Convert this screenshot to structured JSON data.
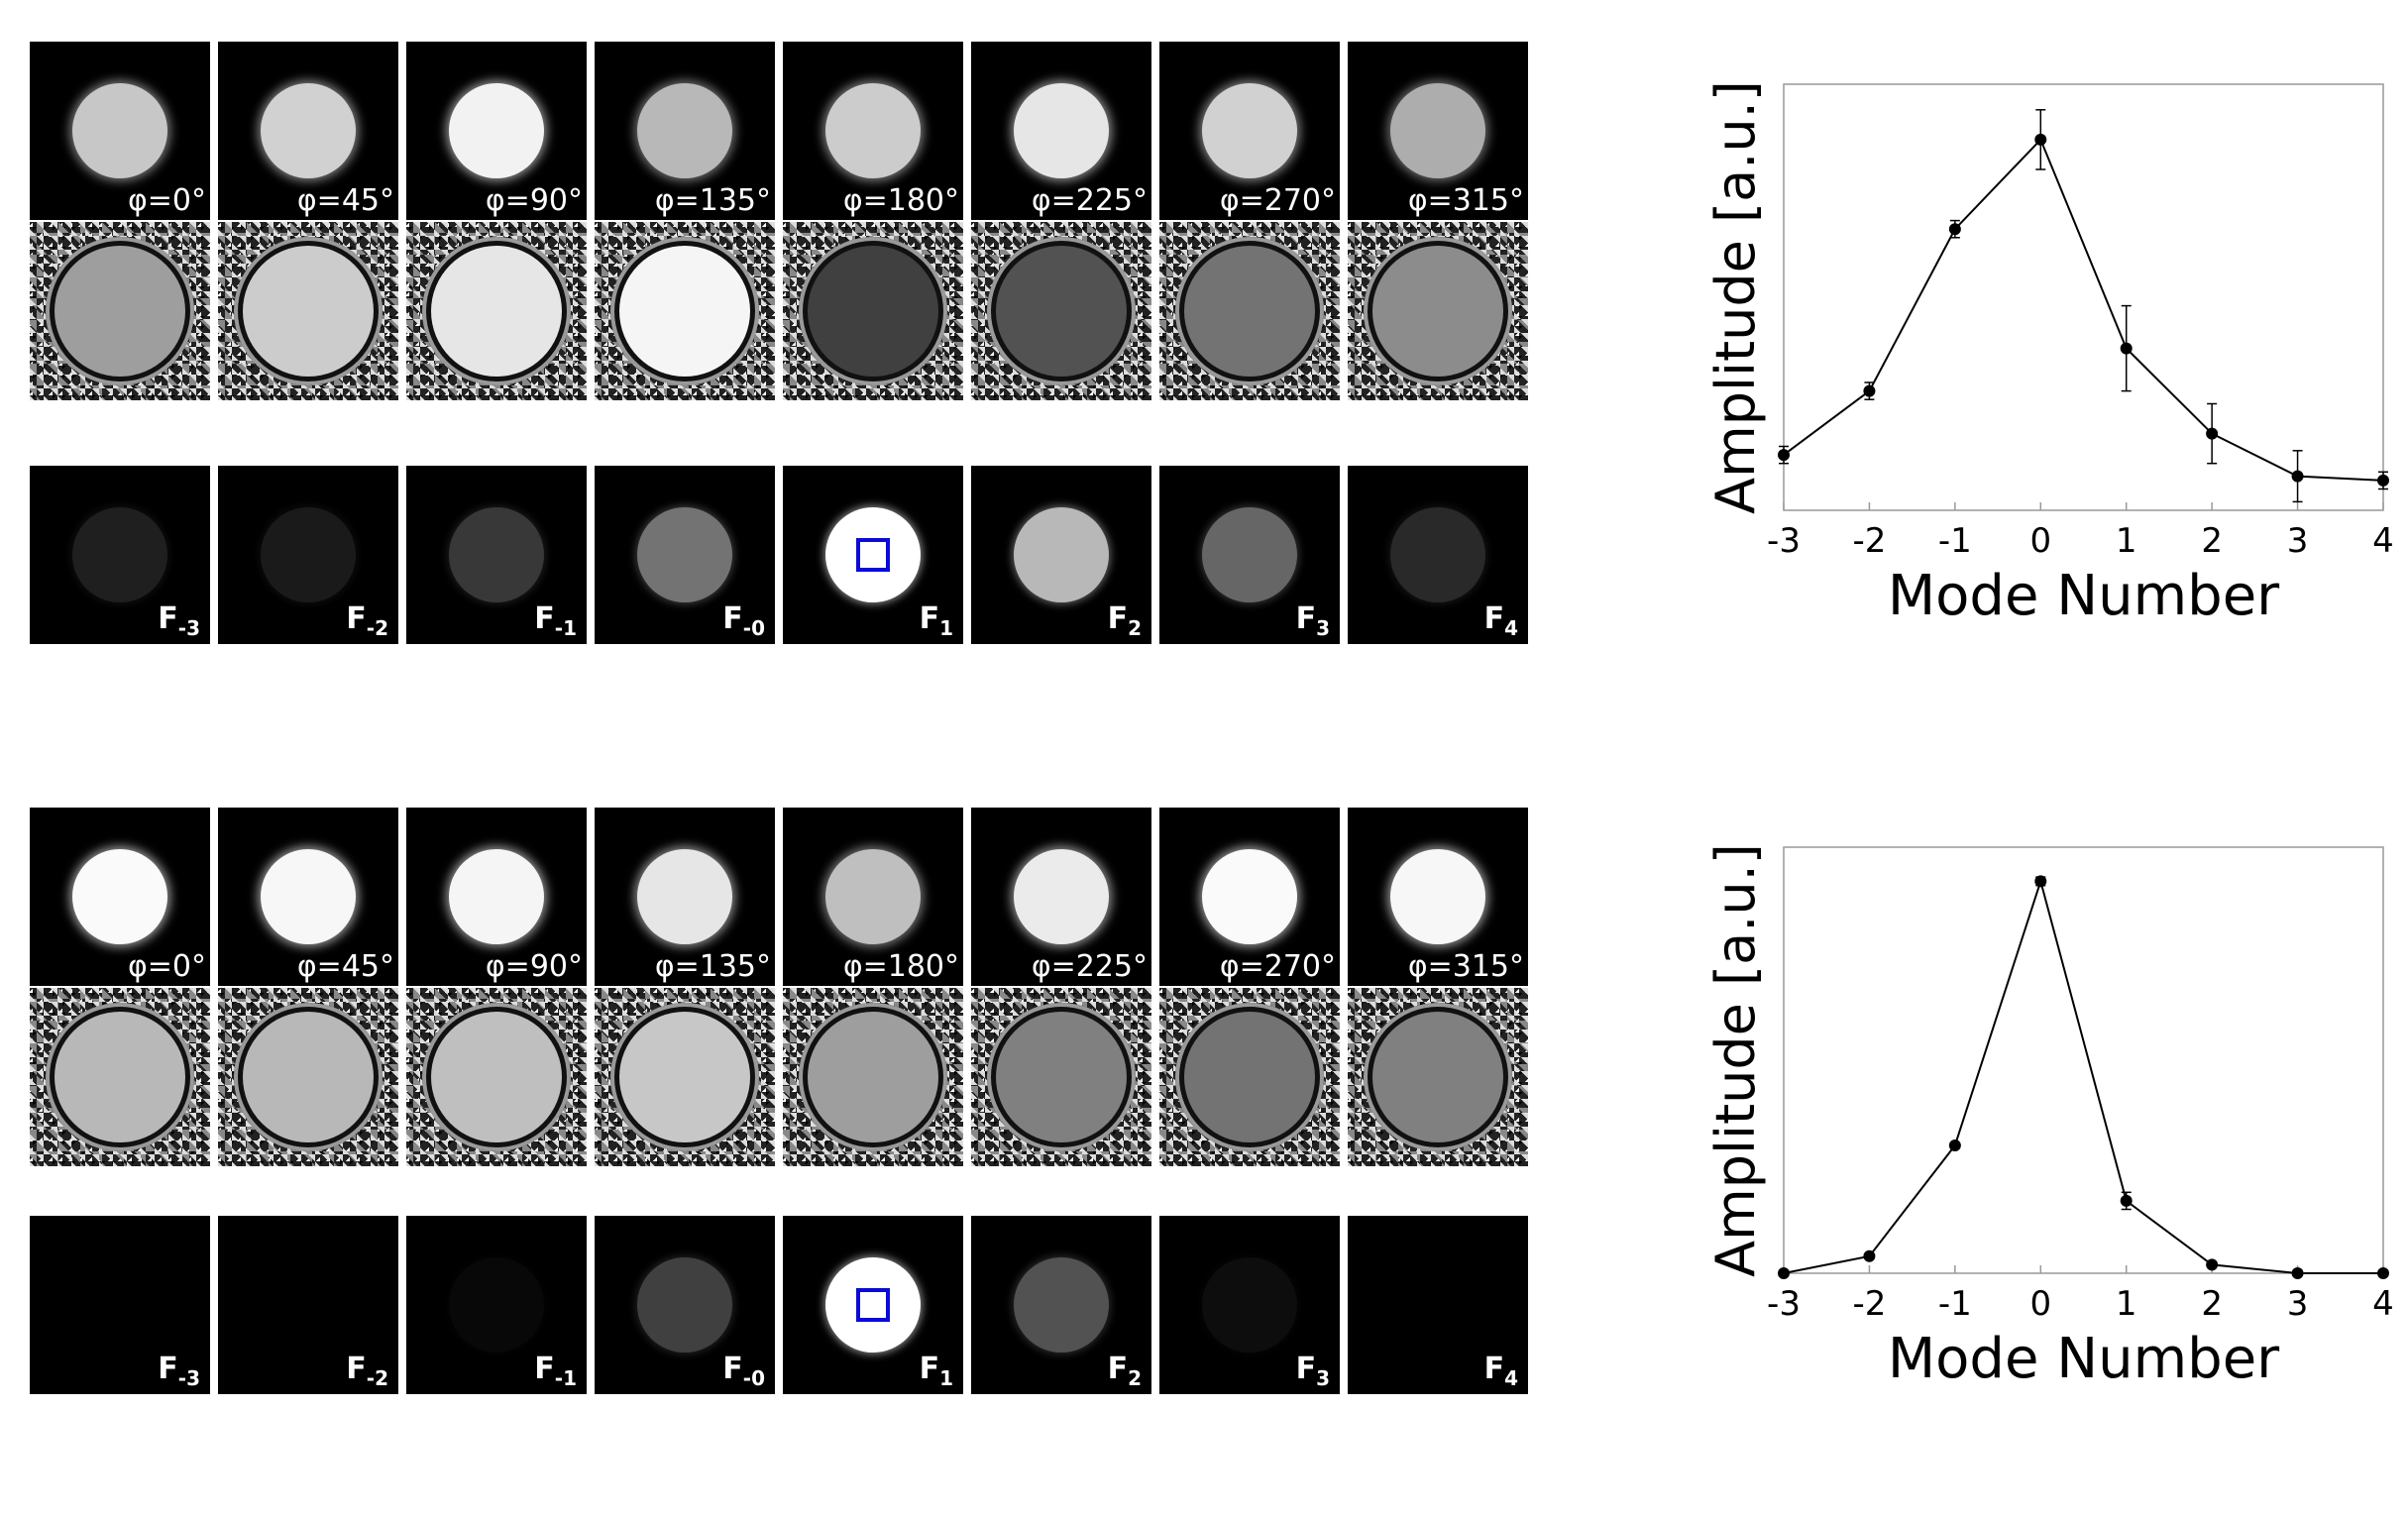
{
  "figure": {
    "panels": [
      {
        "phase_labels": [
          "φ=0°",
          "φ=45°",
          "φ=90°",
          "φ=135°",
          "φ=180°",
          "φ=225°",
          "φ=270°",
          "φ=315°"
        ],
        "mode_labels": [
          {
            "base": "F",
            "sub": "-3"
          },
          {
            "base": "F",
            "sub": "-2"
          },
          {
            "base": "F",
            "sub": "-1"
          },
          {
            "base": "F",
            "sub": "-0"
          },
          {
            "base": "F",
            "sub": "1"
          },
          {
            "base": "F",
            "sub": "2"
          },
          {
            "base": "F",
            "sub": "3"
          },
          {
            "base": "F",
            "sub": "4"
          }
        ],
        "magnitude_levels": [
          0.78,
          0.82,
          0.95,
          0.72,
          0.8,
          0.9,
          0.82,
          0.68
        ],
        "phase_levels": [
          0.62,
          0.8,
          0.9,
          0.96,
          0.25,
          0.32,
          0.45,
          0.55
        ],
        "mode_levels": [
          0.12,
          0.1,
          0.22,
          0.45,
          1.0,
          0.72,
          0.4,
          0.16
        ]
      },
      {
        "phase_labels": [
          "φ=0°",
          "φ=45°",
          "φ=90°",
          "φ=135°",
          "φ=180°",
          "φ=225°",
          "φ=270°",
          "φ=315°"
        ],
        "mode_labels": [
          {
            "base": "F",
            "sub": "-3"
          },
          {
            "base": "F",
            "sub": "-2"
          },
          {
            "base": "F",
            "sub": "-1"
          },
          {
            "base": "F",
            "sub": "-0"
          },
          {
            "base": "F",
            "sub": "1"
          },
          {
            "base": "F",
            "sub": "2"
          },
          {
            "base": "F",
            "sub": "3"
          },
          {
            "base": "F",
            "sub": "4"
          }
        ],
        "magnitude_levels": [
          0.98,
          0.97,
          0.96,
          0.9,
          0.75,
          0.92,
          0.98,
          0.97
        ],
        "phase_levels": [
          0.72,
          0.72,
          0.75,
          0.78,
          0.62,
          0.5,
          0.45,
          0.5
        ],
        "mode_levels": [
          0.0,
          0.0,
          0.03,
          0.25,
          1.0,
          0.32,
          0.05,
          0.0
        ]
      }
    ]
  },
  "chart_data": [
    {
      "type": "line",
      "xlabel": "Mode Number",
      "ylabel": "Amplitude [a.u.]",
      "x": [
        -3,
        -2,
        -1,
        0,
        1,
        2,
        3,
        4
      ],
      "xticks": [
        "-3",
        "-2",
        "-1",
        "0",
        "1",
        "2",
        "3",
        "4"
      ],
      "xlim": [
        -3,
        4
      ],
      "ylim": [
        0,
        1
      ],
      "grid": false,
      "series": [
        {
          "values": [
            0.13,
            0.28,
            0.66,
            0.87,
            0.38,
            0.18,
            0.08,
            0.07
          ],
          "errors": [
            0.02,
            0.02,
            0.02,
            0.07,
            0.1,
            0.07,
            0.06,
            0.02
          ]
        }
      ]
    },
    {
      "type": "line",
      "xlabel": "Mode Number",
      "ylabel": "Amplitude [a.u.]",
      "x": [
        -3,
        -2,
        -1,
        0,
        1,
        2,
        3,
        4
      ],
      "xticks": [
        "-3",
        "-2",
        "-1",
        "0",
        "1",
        "2",
        "3",
        "4"
      ],
      "xlim": [
        -3,
        4
      ],
      "ylim": [
        0,
        1
      ],
      "grid": false,
      "series": [
        {
          "values": [
            0.0,
            0.04,
            0.3,
            0.92,
            0.17,
            0.02,
            0.0,
            0.0
          ],
          "errors": [
            0.0,
            0.0,
            0.0,
            0.01,
            0.02,
            0.0,
            0.0,
            0.0
          ]
        }
      ]
    }
  ]
}
